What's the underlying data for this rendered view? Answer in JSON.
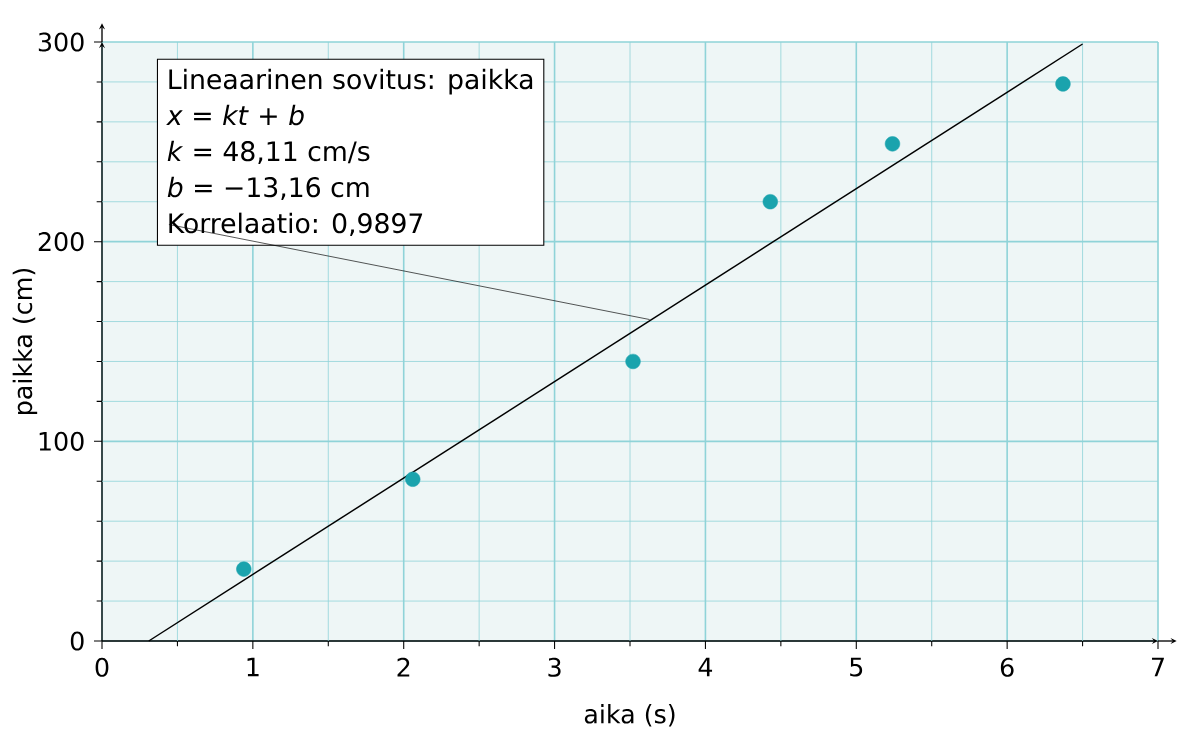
{
  "chart_data": {
    "type": "scatter",
    "xlabel": "aika (s)",
    "ylabel": "paikka (cm)",
    "xlim": [
      0,
      7
    ],
    "ylim": [
      0,
      300
    ],
    "xticks": [
      0,
      {
        "value": 0.5,
        "label": null
      },
      1,
      {
        "value": 1.5,
        "label": null
      },
      2,
      {
        "value": 2.5,
        "label": null
      },
      3,
      {
        "value": 3.5,
        "label": null
      },
      4,
      {
        "value": 4.5,
        "label": null
      },
      5,
      {
        "value": 5.5,
        "label": null
      },
      6,
      {
        "value": 6.5,
        "label": null
      },
      7
    ],
    "yticks": [
      0,
      {
        "value": 20,
        "label": null
      },
      {
        "value": 40,
        "label": null
      },
      {
        "value": 60,
        "label": null
      },
      {
        "value": 80,
        "label": null
      },
      100,
      {
        "value": 120,
        "label": null
      },
      {
        "value": 140,
        "label": null
      },
      {
        "value": 160,
        "label": null
      },
      {
        "value": 180,
        "label": null
      },
      200,
      {
        "value": 220,
        "label": null
      },
      {
        "value": 240,
        "label": null
      },
      {
        "value": 260,
        "label": null
      },
      {
        "value": 280,
        "label": null
      },
      300
    ],
    "grid": true,
    "series": [
      {
        "color": "#1aa3ad",
        "marker": "circle",
        "x": [
          0.94,
          2.06,
          3.52,
          4.43,
          5.24,
          6.37
        ],
        "values": [
          36,
          81,
          140,
          220,
          249,
          279
        ]
      },
      {
        "type": "line",
        "color": "#000000",
        "marker": "none",
        "x": [
          0.31,
          6.5
        ],
        "values": [
          0,
          299
        ]
      }
    ],
    "annotations": [
      "Lineaarinen sovitus: paikka",
      "*x* = *kt* + *b*",
      "*k* = 48,11 cm/s",
      "*b* = −13,16 cm",
      {
        "text": "Korrelaatio: 0,9897",
        "x": 3.63,
        "y": 161
      }
    ]
  }
}
